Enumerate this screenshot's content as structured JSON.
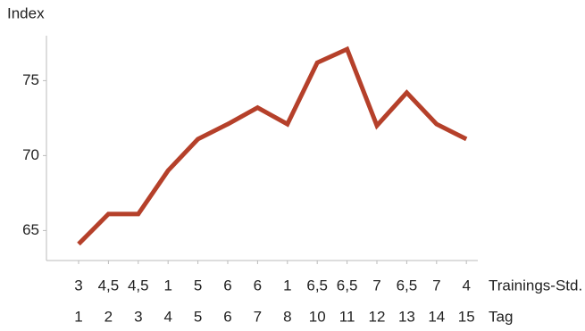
{
  "chart_data": {
    "type": "line",
    "y_label": "Index",
    "categories": [
      "1",
      "2",
      "3",
      "4",
      "5",
      "6",
      "7",
      "8",
      "10",
      "11",
      "12",
      "13",
      "14",
      "15"
    ],
    "category_row_label": "Tag",
    "training_hours": [
      "3",
      "4,5",
      "4,5",
      "1",
      "5",
      "6",
      "6",
      "1",
      "6,5",
      "6,5",
      "7",
      "6,5",
      "7",
      "4"
    ],
    "training_row_label": "Trainings-Std.",
    "series": [
      {
        "color": "#b5402a",
        "values": [
          64.1,
          66.1,
          66.1,
          69.0,
          71.1,
          72.1,
          73.2,
          72.1,
          76.2,
          77.1,
          72.0,
          74.2,
          72.1,
          71.1
        ]
      }
    ],
    "ylim": [
      63,
      78
    ],
    "yticks": [
      65,
      70,
      75
    ]
  }
}
